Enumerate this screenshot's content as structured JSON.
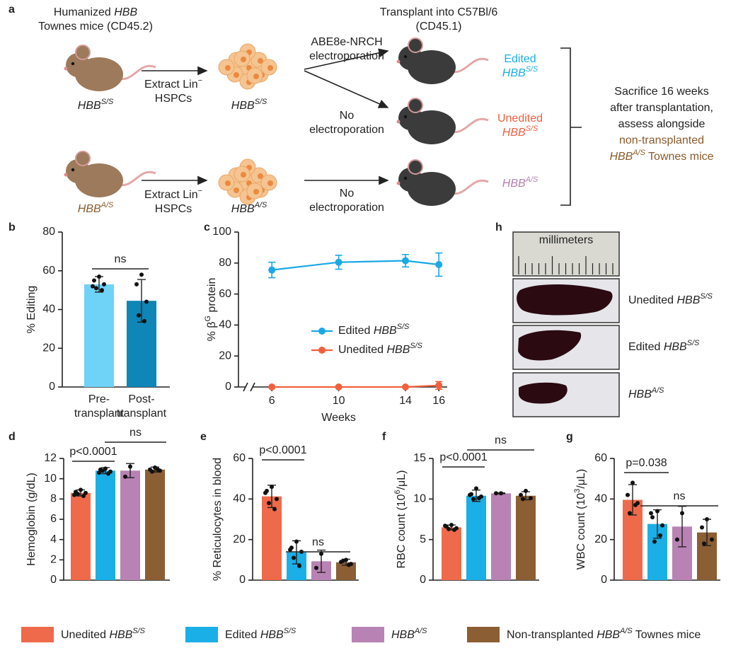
{
  "schematic": {
    "label": "a",
    "source_title": [
      [
        "Humanized ",
        {
          "i": "HBB"
        }
      ],
      [
        "Townes mice (CD45.2)"
      ]
    ],
    "transplant_title": [
      [
        "Transplant into C57Bl/6"
      ],
      [
        "(CD45.1)"
      ]
    ],
    "mouse_top": [
      [
        {
          "i": "HBB"
        },
        {
          "sup": "S/S"
        }
      ]
    ],
    "mouse_bottom": [
      [
        {
          "i": "HBB"
        },
        {
          "sup": "A/S"
        }
      ]
    ],
    "extract_top": [
      [
        "Extract Lin",
        {
          "sup": "−"
        }
      ],
      [
        "HSPCs"
      ]
    ],
    "extract_bottom": [
      [
        "Extract Lin",
        {
          "sup": "−"
        }
      ],
      [
        "HSPCs"
      ]
    ],
    "cells_top": [
      [
        {
          "i": "HBB"
        },
        {
          "sup": "S/S"
        }
      ]
    ],
    "cells_bottom": [
      [
        {
          "i": "HBB"
        },
        {
          "sup": "A/S"
        }
      ]
    ],
    "method_edit": [
      [
        "ABE8e-NRCH"
      ],
      [
        "electroporation"
      ]
    ],
    "method_none_top": [
      [
        "No"
      ],
      [
        "electroporation"
      ]
    ],
    "method_none_bottom": [
      [
        "No"
      ],
      [
        "electroporation"
      ]
    ],
    "group_edited": {
      "color": "#19aee8",
      "lines": [
        [
          "Edited"
        ],
        [
          {
            "i": "HBB"
          },
          {
            "sup": "S/S"
          }
        ]
      ]
    },
    "group_unedited": {
      "color": "#f0603f",
      "lines": [
        [
          "Unedited"
        ],
        [
          {
            "i": "HBB"
          },
          {
            "sup": "S/S"
          }
        ]
      ]
    },
    "group_as": {
      "color": "#b57fb0",
      "lines": [
        [
          {
            "i": "HBB"
          },
          {
            "sup": "A/S"
          }
        ]
      ]
    },
    "outcome": [
      {
        "color": "#222222",
        "lines": [
          [
            "Sacrifice 16 weeks"
          ],
          [
            "after transplantation,"
          ],
          [
            "assess alongside"
          ]
        ]
      },
      {
        "color": "#8b5a2b",
        "lines": [
          [
            "non-transplanted"
          ],
          [
            {
              "i": "HBB"
            },
            {
              "sup": "A/S"
            },
            " Townes mice"
          ]
        ]
      }
    ]
  },
  "chart_data": [
    {
      "type": "bar",
      "label": "b",
      "categories": [
        [
          "Pre-",
          "transplant"
        ],
        [
          "Post-",
          "transplant"
        ]
      ],
      "values": [
        53,
        44.5
      ],
      "errors": [
        4,
        11
      ],
      "points": [
        [
          57,
          55,
          53,
          51,
          50,
          52
        ],
        [
          58,
          53,
          44,
          37,
          34
        ]
      ],
      "colors": [
        "#6fd3f7",
        "#0e86b7"
      ],
      "ylabel": "% Editing",
      "ylim": [
        0,
        80
      ],
      "yticks": [
        0,
        20,
        40,
        60,
        80
      ],
      "annotations": [
        "ns"
      ]
    },
    {
      "type": "line",
      "label": "c",
      "x": [
        6,
        10,
        14,
        16
      ],
      "xlim": [
        4,
        16.5
      ],
      "xticks": [
        6,
        10,
        14,
        16
      ],
      "xlabel": "Weeks",
      "ylabel": [
        [
          "% β",
          {
            "sup": "G"
          },
          " protein"
        ]
      ],
      "ylim": [
        0,
        100
      ],
      "yticks": [
        0,
        20,
        40,
        60,
        80,
        100
      ],
      "series": [
        {
          "name": [
            [
              "Edited ",
              {
                "i": "HBB"
              },
              {
                "sup": "S/S"
              }
            ]
          ],
          "color": "#1aa9e6",
          "values": [
            75.5,
            80.5,
            81.5,
            79
          ],
          "errors": [
            5,
            4.5,
            4,
            7.5
          ]
        },
        {
          "name": [
            [
              "Unedited ",
              {
                "i": "HBB"
              },
              {
                "sup": "S/S"
              }
            ]
          ],
          "color": "#f0603f",
          "values": [
            0,
            0,
            0,
            1
          ],
          "errors": [
            0,
            0,
            0,
            2.5
          ]
        }
      ]
    },
    {
      "type": "bar",
      "label": "d",
      "values": [
        8.6,
        10.8,
        10.8,
        10.9
      ],
      "errors": [
        0.3,
        0.3,
        0.7,
        0.25
      ],
      "points": [
        [
          8.9,
          8.7,
          8.6,
          8.5,
          8.3,
          8.4
        ],
        [
          11.0,
          10.9,
          10.7,
          10.8,
          10.5,
          10.6
        ],
        [
          11.2,
          10.2
        ],
        [
          11.1,
          10.9,
          10.8,
          10.7,
          10.9
        ]
      ],
      "colors": [
        "#ef6a4a",
        "#1aafe6",
        "#b883b4",
        "#8b5e34"
      ],
      "ylabel": "Hemoglobin (g/dL)",
      "ylim": [
        0,
        12
      ],
      "yticks": [
        0,
        2,
        4,
        6,
        8,
        10,
        12
      ],
      "annotations": [
        "p<0.0001",
        "ns"
      ]
    },
    {
      "type": "bar",
      "label": "e",
      "values": [
        41.3,
        13.7,
        9.3,
        8.8
      ],
      "errors": [
        5.5,
        5.7,
        5.5,
        1.5
      ],
      "points": [
        [
          46,
          44,
          40,
          38,
          35,
          43
        ],
        [
          19,
          16,
          14,
          11,
          7,
          15
        ],
        [
          13,
          6
        ],
        [
          10,
          9,
          8,
          9.5,
          7.5
        ]
      ],
      "colors": [
        "#ef6a4a",
        "#1aafe6",
        "#b883b4",
        "#8b5e34"
      ],
      "ylabel": "% Reticulocytes in blood",
      "ylim": [
        0,
        60
      ],
      "yticks": [
        0,
        20,
        40,
        60
      ],
      "annotations": [
        "p<0.0001",
        "ns"
      ]
    },
    {
      "type": "bar",
      "label": "f",
      "values": [
        6.5,
        10.4,
        10.7,
        10.4
      ],
      "errors": [
        0.3,
        0.7,
        0.05,
        0.5
      ],
      "points": [
        [
          6.8,
          6.6,
          6.4,
          6.3,
          6.2,
          6.7
        ],
        [
          11.3,
          10.6,
          10.3,
          10.0,
          10.1,
          10.5
        ],
        [
          10.7,
          10.7
        ],
        [
          11.0,
          10.5,
          10.1,
          10.0
        ]
      ],
      "colors": [
        "#ef6a4a",
        "#1aafe6",
        "#b883b4",
        "#8b5e34"
      ],
      "ylabel": [
        [
          "RBC count (10",
          {
            "sup": "6"
          },
          "/μL)"
        ]
      ],
      "ylim": [
        0,
        15
      ],
      "yticks": [
        0,
        5,
        10,
        15
      ],
      "annotations": [
        "p<0.0001",
        "ns"
      ]
    },
    {
      "type": "bar",
      "label": "g",
      "values": [
        39.6,
        27.7,
        26.4,
        23.5
      ],
      "errors": [
        7.5,
        7,
        10,
        6.5
      ],
      "points": [
        [
          48,
          42,
          38,
          33,
          37
        ],
        [
          34,
          31,
          27,
          19,
          22,
          33
        ],
        [
          33,
          20
        ],
        [
          30,
          26,
          20,
          18
        ]
      ],
      "colors": [
        "#ef6a4a",
        "#1aafe6",
        "#b883b4",
        "#8b5e34"
      ],
      "ylabel": [
        [
          "WBC count (10",
          {
            "sup": "3"
          },
          "/μL)"
        ]
      ],
      "ylim": [
        0,
        60
      ],
      "yticks": [
        0,
        20,
        40,
        60
      ],
      "annotations": [
        "p=0.038",
        "ns"
      ]
    }
  ],
  "photo": {
    "label": "h",
    "ruler": "millimeters",
    "samples": [
      [
        [
          "Unedited ",
          {
            "i": "HBB"
          },
          {
            "sup": "S/S"
          }
        ]
      ],
      [
        [
          "Edited ",
          {
            "i": "HBB"
          },
          {
            "sup": "S/S"
          }
        ]
      ],
      [
        [
          {
            "i": "HBB"
          },
          {
            "sup": "A/S"
          }
        ]
      ]
    ]
  },
  "legend": [
    {
      "color": "#ef6a4a",
      "name": [
        [
          "Unedited ",
          {
            "i": "HBB"
          },
          {
            "sup": "S/S"
          }
        ]
      ]
    },
    {
      "color": "#1aafe6",
      "name": [
        [
          "Edited ",
          {
            "i": "HBB"
          },
          {
            "sup": "S/S"
          }
        ]
      ]
    },
    {
      "color": "#b883b4",
      "name": [
        [
          {
            "i": "HBB"
          },
          {
            "sup": "A/S"
          }
        ]
      ]
    },
    {
      "color": "#8b5e34",
      "name": [
        [
          "Non-transplanted ",
          {
            "i": "HBB"
          },
          {
            "sup": "A/S"
          },
          " Townes mice"
        ]
      ]
    }
  ]
}
